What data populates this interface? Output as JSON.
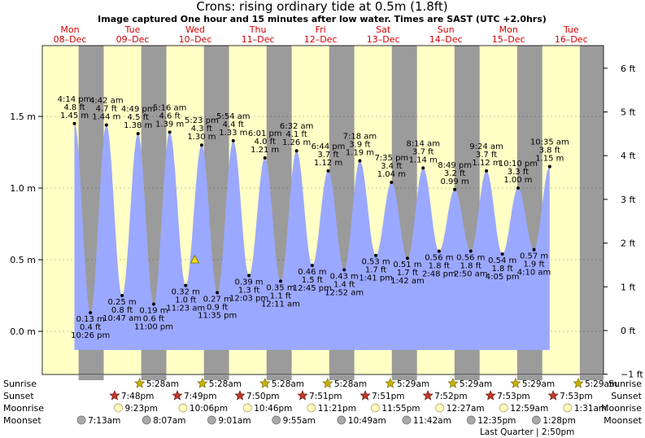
{
  "title": "Crons: rising  ordinary tide at 0.5m (1.8ft)",
  "subtitle": "Image captured One hour and 15 minutes after low water. Times are SAST (UTC +2.0hrs)",
  "days": [
    {
      "name": "Mon",
      "date": "08–Dec"
    },
    {
      "name": "Tue",
      "date": "09–Dec"
    },
    {
      "name": "Wed",
      "date": "10–Dec"
    },
    {
      "name": "Thu",
      "date": "11–Dec"
    },
    {
      "name": "Fri",
      "date": "12–Dec"
    },
    {
      "name": "Sat",
      "date": "13–Dec"
    },
    {
      "name": "Sun",
      "date": "14–Dec"
    },
    {
      "name": "Mon",
      "date": "15–Dec"
    },
    {
      "name": "Tue",
      "date": "16–Dec"
    }
  ],
  "chart_data": {
    "type": "area",
    "title": "Crons: rising  ordinary tide at 0.5m (1.8ft)",
    "y_left_ticks": [
      "1.5 m",
      "1.0 m",
      "0.5 m",
      "0.0 m"
    ],
    "y_right_ticks": [
      "6 ft",
      "5 ft",
      "4 ft",
      "3 ft",
      "2 ft",
      "1 ft",
      "0 ft",
      "−1 ft"
    ],
    "ylim_m": [
      -0.3,
      1.95
    ],
    "x_unit": "days since Mon 08-Dec 00:00 SAST",
    "series_start_day": 0.63,
    "series_end_day": 8.87,
    "current": {
      "day": 4.6,
      "height": 0.5
    },
    "extremes": [
      {
        "type": "high",
        "day": 0.76,
        "h": 1.45,
        "time": "4:14 pm",
        "ft": "4.8 ft",
        "m": "1.45 m"
      },
      {
        "type": "low",
        "day": 1.27,
        "h": 0.13,
        "time": "10:26 pm",
        "ft": "0.4 ft",
        "m": "0.13 m"
      },
      {
        "type": "high",
        "day": 1.78,
        "h": 1.44,
        "time": "4:42 am",
        "ft": "4.7 ft",
        "m": "1.44 m"
      },
      {
        "type": "low",
        "day": 2.28,
        "h": 0.25,
        "time": "10:47 am",
        "ft": "0.8 ft",
        "m": "0.25 m"
      },
      {
        "type": "high",
        "day": 2.79,
        "h": 1.38,
        "time": "4:49 pm",
        "ft": "4.5 ft",
        "m": "1.38 m"
      },
      {
        "type": "low",
        "day": 3.29,
        "h": 0.19,
        "time": "11:00 pm",
        "ft": "0.6 ft",
        "m": "0.19 m"
      },
      {
        "type": "high",
        "day": 3.8,
        "h": 1.39,
        "time": "5:16 am",
        "ft": "4.6 ft",
        "m": "1.39 m"
      },
      {
        "type": "low",
        "day": 4.31,
        "h": 0.32,
        "time": "11:23 am",
        "ft": "1.0 ft",
        "m": "0.32 m"
      },
      {
        "type": "high",
        "day": 4.82,
        "h": 1.3,
        "time": "5:23 pm",
        "ft": "4.3 ft",
        "m": "1.30 m"
      },
      {
        "type": "low",
        "day": 5.32,
        "h": 0.27,
        "time": "11:35 pm",
        "ft": "0.9 ft",
        "m": "0.27 m"
      },
      {
        "type": "high",
        "day": 5.83,
        "h": 1.33,
        "time": "5:54 am",
        "ft": "4.4 ft",
        "m": "1.33 m"
      },
      {
        "type": "low",
        "day": 6.33,
        "h": 0.39,
        "time": "12:03 pm",
        "ft": "1.3 ft",
        "m": "0.39 m"
      },
      {
        "type": "high",
        "day": 6.84,
        "h": 1.21,
        "time": "6:01 pm",
        "ft": "4.0 ft",
        "m": "1.21 m"
      },
      {
        "type": "low",
        "day": 7.34,
        "h": 0.35,
        "time": "12:11 am",
        "ft": "1.1 ft",
        "m": "0.35 m"
      },
      {
        "type": "high",
        "day": 7.85,
        "h": 1.26,
        "time": "6:32 am",
        "ft": "4.1 ft",
        "m": "1.26 m"
      },
      {
        "type": "low",
        "day": 8.35,
        "h": 0.46,
        "time": "12:45 pm",
        "ft": "1.5 ft",
        "m": "0.46 m"
      },
      {
        "type": "high",
        "day": 8.86,
        "h": 1.12,
        "time": "6:44 pm",
        "ft": "3.7 ft",
        "m": "1.12 m"
      },
      {
        "type": "low",
        "day": 9.37,
        "h": 0.43,
        "time": "12:52 am",
        "ft": "1.4 ft",
        "m": "0.43 m"
      },
      {
        "type": "high",
        "day": 9.87,
        "h": 1.19,
        "time": "7:18 am",
        "ft": "3.9 ft",
        "m": "1.19 m"
      },
      {
        "type": "low",
        "day": 10.38,
        "h": 0.53,
        "time": "1:41 pm",
        "ft": "1.7 ft",
        "m": "0.53 m"
      },
      {
        "type": "high",
        "day": 10.88,
        "h": 1.04,
        "time": "7:35 pm",
        "ft": "3.4 ft",
        "m": "1.04 m"
      },
      {
        "type": "low",
        "day": 11.39,
        "h": 0.51,
        "time": "1:42 am",
        "ft": "1.7 ft",
        "m": "0.51 m"
      },
      {
        "type": "high",
        "day": 11.89,
        "h": 1.14,
        "time": "8:14 am",
        "ft": "3.7 ft",
        "m": "1.14 m"
      },
      {
        "type": "low",
        "day": 12.4,
        "h": 0.56,
        "time": "2:48 pm",
        "ft": "1.8 ft",
        "m": "0.56 m"
      },
      {
        "type": "high",
        "day": 12.9,
        "h": 0.99,
        "time": "8:49 pm",
        "ft": "3.2 ft",
        "m": "0.99 m"
      },
      {
        "type": "low",
        "day": 13.41,
        "h": 0.56,
        "time": "2:50 am",
        "ft": "1.8 ft",
        "m": "0.56 m"
      },
      {
        "type": "high",
        "day": 13.91,
        "h": 1.12,
        "time": "9:24 am",
        "ft": "3.7 ft",
        "m": "1.12 m"
      },
      {
        "type": "low",
        "day": 14.42,
        "h": 0.54,
        "time": "4:05 pm",
        "ft": "1.8 ft",
        "m": "0.54 m"
      },
      {
        "type": "high",
        "day": 14.92,
        "h": 1.0,
        "time": "10:10 pm",
        "ft": "3.3 ft",
        "m": "1.00 m"
      },
      {
        "type": "low",
        "day": 15.43,
        "h": 0.57,
        "time": "4:10 am",
        "ft": "1.9 ft",
        "m": "0.57 m"
      },
      {
        "type": "high",
        "day": 15.93,
        "h": 1.15,
        "time": "10:35 am",
        "ft": "3.8 ft",
        "m": "1.15 m"
      }
    ],
    "nights": [
      {
        "set_day": 0.826,
        "rise_day": 1.227
      },
      {
        "set_day": 1.826,
        "rise_day": 2.227
      },
      {
        "set_day": 2.826,
        "rise_day": 3.227
      },
      {
        "set_day": 3.826,
        "rise_day": 4.227
      },
      {
        "set_day": 4.826,
        "rise_day": 5.227
      },
      {
        "set_day": 5.826,
        "rise_day": 6.227
      },
      {
        "set_day": 6.826,
        "rise_day": 7.227
      },
      {
        "set_day": 7.826,
        "rise_day": 8.227
      },
      {
        "set_day": 8.826,
        "rise_day": 9.227
      }
    ]
  },
  "astro": {
    "row_labels": [
      "Sunrise",
      "Sunset",
      "Moonrise",
      "Moonset"
    ],
    "sunrise": [
      {
        "day": 1.23,
        "time": "5:28am"
      },
      {
        "day": 2.23,
        "time": "5:28am"
      },
      {
        "day": 3.23,
        "time": "5:28am"
      },
      {
        "day": 4.23,
        "time": "5:28am"
      },
      {
        "day": 5.23,
        "time": "5:29am"
      },
      {
        "day": 6.23,
        "time": "5:29am"
      },
      {
        "day": 7.23,
        "time": "5:29am"
      },
      {
        "day": 8.23,
        "time": "5:29am"
      }
    ],
    "sunset": [
      {
        "day": 0.83,
        "time": "7:48pm"
      },
      {
        "day": 1.83,
        "time": "7:49pm"
      },
      {
        "day": 2.83,
        "time": "7:50pm"
      },
      {
        "day": 3.83,
        "time": "7:51pm"
      },
      {
        "day": 4.83,
        "time": "7:51pm"
      },
      {
        "day": 5.83,
        "time": "7:52pm"
      },
      {
        "day": 6.83,
        "time": "7:53pm"
      },
      {
        "day": 7.83,
        "time": "7:53pm"
      }
    ],
    "moonrise": [
      {
        "day": 0.89,
        "time": "9:23pm"
      },
      {
        "day": 1.92,
        "time": "10:06pm"
      },
      {
        "day": 2.95,
        "time": "10:46pm"
      },
      {
        "day": 3.97,
        "time": "11:21pm"
      },
      {
        "day": 4.99,
        "time": "11:55pm"
      },
      {
        "day": 6.02,
        "time": "12:27am"
      },
      {
        "day": 7.04,
        "time": "12:59am"
      },
      {
        "day": 8.06,
        "time": "1:31am"
      }
    ],
    "moonset": [
      {
        "day": 0.3,
        "time": "7:13am"
      },
      {
        "day": 1.34,
        "time": "8:07am"
      },
      {
        "day": 2.38,
        "time": "9:01am"
      },
      {
        "day": 3.41,
        "time": "9:55am"
      },
      {
        "day": 4.45,
        "time": "10:49am"
      },
      {
        "day": 5.49,
        "time": "11:42am"
      },
      {
        "day": 6.52,
        "time": "12:35pm"
      },
      {
        "day": 7.56,
        "time": "1:28pm"
      }
    ],
    "moon_phase": {
      "label": "Last Quarter",
      "time": "2:50pm",
      "day": 6.62
    }
  },
  "colors": {
    "day_band": "#ffffc6",
    "night_band": "#9b9b9b",
    "water": "#9ba8ff",
    "day_label": "#d40000",
    "sun": "#c8b400",
    "sunset": "#c0392b",
    "moonrise": "#ffffc0",
    "moonset": "#aaaaaa"
  }
}
